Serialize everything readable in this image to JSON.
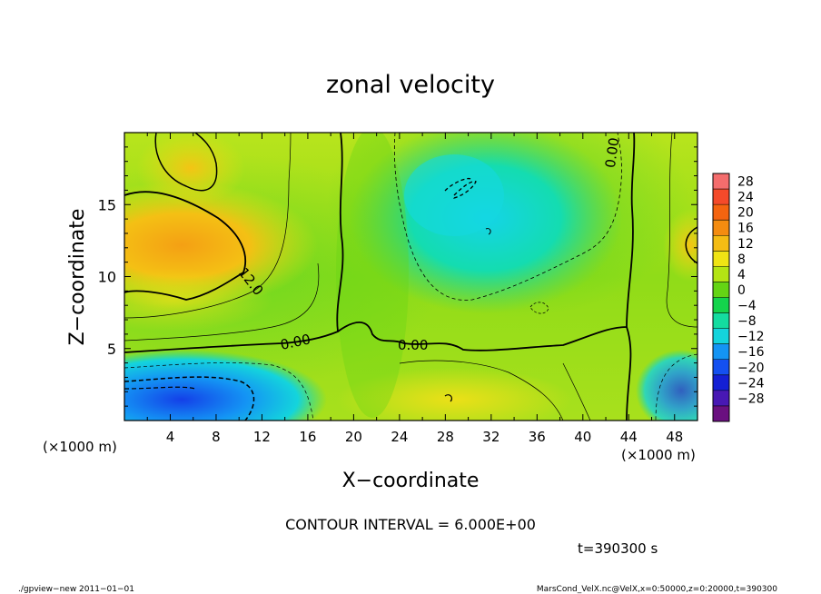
{
  "chart_data": {
    "type": "heatmap",
    "title": "zonal velocity",
    "xlabel": "X−coordinate",
    "ylabel": "Z−coordinate",
    "x_unit_label": "(×1000 m)",
    "y_unit_label": "(×1000 m)",
    "xlim": [
      0,
      50
    ],
    "ylim": [
      0,
      20
    ],
    "x_ticks": [
      4,
      8,
      12,
      16,
      20,
      24,
      28,
      32,
      36,
      40,
      44,
      48
    ],
    "y_ticks": [
      5,
      10,
      15
    ],
    "colorbar_levels": [
      28,
      24,
      20,
      16,
      12,
      8,
      4,
      0,
      -4,
      -8,
      -12,
      -16,
      -20,
      -24,
      -28
    ],
    "colorbar_labels": [
      "28",
      "24",
      "20",
      "16",
      "12",
      "8",
      "4",
      "0",
      "−4",
      "−8",
      "−12",
      "−16",
      "−20",
      "−24",
      "−28"
    ],
    "colorbar_colors": [
      "#f46d6d",
      "#f44a2a",
      "#f46410",
      "#f48c10",
      "#f4bc14",
      "#f0e414",
      "#b4e414",
      "#64d414",
      "#14d44c",
      "#14dca0",
      "#14d4dc",
      "#1494f4",
      "#1450f0",
      "#1420d4",
      "#4818b4",
      "#6a1080"
    ],
    "contour_interval_label": "CONTOUR INTERVAL = 6.000E+00",
    "contour_labels": [
      "12.0",
      "0.00",
      "0.00",
      "0.00"
    ],
    "time_label": "t=390300 s",
    "footer_left": "./gpview−new   2011−01−01",
    "footer_right": "MarsCond_VelX.nc@VelX,x=0:50000,z=0:20000,t=390300"
  }
}
